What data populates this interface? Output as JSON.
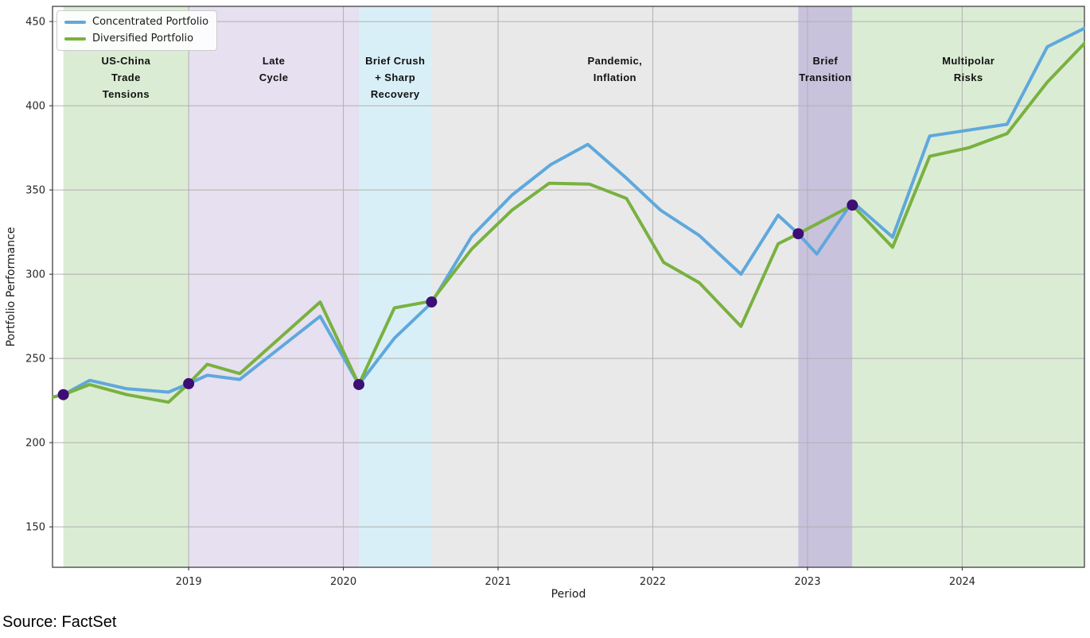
{
  "figure": {
    "source_note": "Source: FactSet"
  },
  "chart_data": {
    "type": "line",
    "xlabel": "Period",
    "ylabel": "Portfolio Performance",
    "xlim": [
      2018.12,
      2024.79
    ],
    "ylim": [
      126,
      459
    ],
    "xticks": [
      2019,
      2020,
      2021,
      2022,
      2023,
      2024
    ],
    "yticks": [
      150,
      200,
      250,
      300,
      350,
      400,
      450
    ],
    "grid": true,
    "grid_color": "#b0b0b0",
    "spine_color": "#333333",
    "tick_color": "#262626",
    "legend_position": "upper-left",
    "series": [
      {
        "name": "Concentrated Portfolio",
        "color": "#5fa8dc",
        "line_width": 4,
        "x": [
          2018.12,
          2018.19,
          2018.36,
          2018.6,
          2018.87,
          2019.0,
          2019.12,
          2019.33,
          2019.85,
          2020.1,
          2020.33,
          2020.57,
          2020.83,
          2021.09,
          2021.34,
          2021.58,
          2021.83,
          2022.05,
          2022.3,
          2022.57,
          2022.81,
          2022.94,
          2023.06,
          2023.29,
          2023.55,
          2023.79,
          2024.04,
          2024.29,
          2024.55,
          2024.79
        ],
        "y": [
          227,
          228.5,
          237,
          232,
          230,
          235,
          240,
          237.5,
          275,
          234.5,
          262,
          283,
          322.5,
          347,
          365,
          377,
          357,
          338,
          323,
          300,
          335,
          324,
          312,
          343,
          322,
          382,
          385.5,
          389,
          435,
          446
        ]
      },
      {
        "name": "Diversified Portfolio",
        "color": "#79b140",
        "line_width": 4,
        "x": [
          2018.12,
          2018.19,
          2018.36,
          2018.6,
          2018.87,
          2019.0,
          2019.12,
          2019.33,
          2019.85,
          2020.1,
          2020.33,
          2020.57,
          2020.83,
          2021.09,
          2021.33,
          2021.59,
          2021.83,
          2022.07,
          2022.3,
          2022.57,
          2022.81,
          2022.94,
          2023.29,
          2023.55,
          2023.79,
          2024.04,
          2024.29,
          2024.55,
          2024.79
        ],
        "y": [
          227,
          228.5,
          234.5,
          228.5,
          224,
          235,
          246.5,
          241,
          283.5,
          234.5,
          280,
          284,
          315,
          338,
          354,
          353.5,
          345,
          307,
          295,
          269,
          318,
          324,
          341,
          316,
          370,
          375,
          383.5,
          414,
          437
        ]
      }
    ],
    "event_markers": {
      "color": "#3d0e73",
      "radius": 7,
      "points": [
        [
          2018.19,
          228.5
        ],
        [
          2019.0,
          235
        ],
        [
          2020.1,
          234.5
        ],
        [
          2020.57,
          283.5
        ],
        [
          2022.94,
          324
        ],
        [
          2023.29,
          341
        ]
      ]
    },
    "regions": [
      {
        "label_lines": [
          "US-China",
          "Trade",
          "Tensions"
        ],
        "start": 2018.19,
        "end": 2019.0,
        "color": "#dbecd4"
      },
      {
        "label_lines": [
          "Late",
          "Cycle"
        ],
        "start": 2019.0,
        "end": 2020.1,
        "color": "#e6e0f0"
      },
      {
        "label_lines": [
          "Brief Crush",
          "+ Sharp",
          "Recovery"
        ],
        "start": 2020.1,
        "end": 2020.57,
        "color": "#d9eff7"
      },
      {
        "label_lines": [
          "Pandemic,",
          "Inflation"
        ],
        "start": 2020.57,
        "end": 2022.94,
        "color": "#e9e9ea"
      },
      {
        "label_lines": [
          "Brief",
          "Transition"
        ],
        "start": 2022.94,
        "end": 2023.29,
        "color": "#c9c2dd"
      },
      {
        "label_lines": [
          "Multipolar",
          "Risks"
        ],
        "start": 2023.29,
        "end": 2024.79,
        "color": "#dbecd4"
      }
    ]
  }
}
